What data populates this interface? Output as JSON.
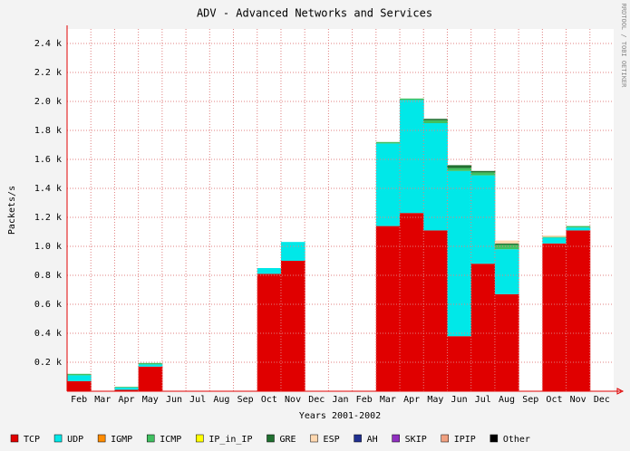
{
  "chart_data": {
    "type": "stacked-area-step",
    "title": "ADV - Advanced Networks and Services",
    "y_label": "Packets/s",
    "x_label": "Years 2001-2002",
    "watermark": "RRDTOOL / TOBI OETIKER",
    "categories": [
      "Feb",
      "Mar",
      "Apr",
      "May",
      "Jun",
      "Jul",
      "Aug",
      "Sep",
      "Oct",
      "Nov",
      "Dec",
      "Jan",
      "Feb",
      "Mar",
      "Apr",
      "May",
      "Jun",
      "Jul",
      "Aug",
      "Sep",
      "Oct",
      "Nov",
      "Dec"
    ],
    "ylim": [
      0,
      2.5
    ],
    "yticks": [
      {
        "value": 0.2,
        "label": "0.2 k"
      },
      {
        "value": 0.4,
        "label": "0.4 k"
      },
      {
        "value": 0.6,
        "label": "0.6 k"
      },
      {
        "value": 0.8,
        "label": "0.8 k"
      },
      {
        "value": 1.0,
        "label": "1.0 k"
      },
      {
        "value": 1.2,
        "label": "1.2 k"
      },
      {
        "value": 1.4,
        "label": "1.4 k"
      },
      {
        "value": 1.6,
        "label": "1.6 k"
      },
      {
        "value": 1.8,
        "label": "1.8 k"
      },
      {
        "value": 2.0,
        "label": "2.0 k"
      },
      {
        "value": 2.2,
        "label": "2.2 k"
      },
      {
        "value": 2.4,
        "label": "2.4 k"
      }
    ],
    "grid": true,
    "series": [
      {
        "name": "TCP",
        "color": "#e00000",
        "values": [
          0.07,
          0,
          0.01,
          0.17,
          0,
          0,
          0,
          0,
          0.81,
          0.9,
          0,
          0,
          0,
          1.14,
          1.23,
          1.11,
          0.38,
          0.88,
          0.67,
          0,
          1.02,
          1.11,
          0
        ]
      },
      {
        "name": "UDP",
        "color": "#00e8e8",
        "values": [
          0.04,
          0,
          0.015,
          0.015,
          0,
          0,
          0,
          0,
          0.04,
          0.13,
          0,
          0,
          0,
          0.57,
          0.78,
          0.74,
          1.14,
          0.61,
          0.31,
          0,
          0.04,
          0.02,
          0
        ]
      },
      {
        "name": "IGMP",
        "color": "#ff8c00",
        "values": [
          0,
          0,
          0,
          0,
          0,
          0,
          0,
          0,
          0,
          0,
          0,
          0,
          0,
          0,
          0,
          0,
          0,
          0,
          0,
          0,
          0,
          0,
          0
        ]
      },
      {
        "name": "ICMP",
        "color": "#40c060",
        "values": [
          0.01,
          0,
          0.005,
          0.01,
          0,
          0,
          0,
          0,
          0,
          0,
          0,
          0,
          0,
          0.01,
          0.01,
          0.02,
          0.02,
          0.02,
          0.03,
          0,
          0.005,
          0.01,
          0
        ]
      },
      {
        "name": "IP_in_IP",
        "color": "#ffff00",
        "values": [
          0,
          0,
          0,
          0,
          0,
          0,
          0,
          0,
          0,
          0,
          0,
          0,
          0,
          0,
          0,
          0,
          0,
          0,
          0,
          0,
          0,
          0,
          0
        ]
      },
      {
        "name": "GRE",
        "color": "#207030",
        "values": [
          0,
          0,
          0,
          0,
          0,
          0,
          0,
          0,
          0,
          0,
          0,
          0,
          0,
          0,
          0,
          0.01,
          0.02,
          0.01,
          0.01,
          0,
          0,
          0,
          0
        ]
      },
      {
        "name": "ESP",
        "color": "#ffd8b0",
        "values": [
          0,
          0,
          0,
          0,
          0,
          0,
          0,
          0,
          0,
          0,
          0,
          0,
          0,
          0,
          0,
          0,
          0,
          0,
          0.02,
          0,
          0.01,
          0,
          0
        ]
      },
      {
        "name": "AH",
        "color": "#203090",
        "values": [
          0,
          0,
          0,
          0,
          0,
          0,
          0,
          0,
          0,
          0,
          0,
          0,
          0,
          0,
          0,
          0,
          0,
          0,
          0,
          0,
          0,
          0,
          0
        ]
      },
      {
        "name": "SKIP",
        "color": "#9030c0",
        "values": [
          0,
          0,
          0,
          0,
          0,
          0,
          0,
          0,
          0,
          0,
          0,
          0,
          0,
          0,
          0,
          0,
          0,
          0,
          0,
          0,
          0,
          0,
          0
        ]
      },
      {
        "name": "IPIP",
        "color": "#f0a080",
        "values": [
          0,
          0,
          0,
          0,
          0,
          0,
          0,
          0,
          0,
          0,
          0,
          0,
          0,
          0,
          0,
          0,
          0,
          0,
          0,
          0,
          0,
          0,
          0
        ]
      },
      {
        "name": "Other",
        "color": "#000000",
        "values": [
          0,
          0,
          0,
          0,
          0,
          0,
          0,
          0,
          0,
          0,
          0,
          0,
          0,
          0,
          0,
          0,
          0,
          0,
          0,
          0,
          0,
          0,
          0
        ]
      }
    ]
  }
}
